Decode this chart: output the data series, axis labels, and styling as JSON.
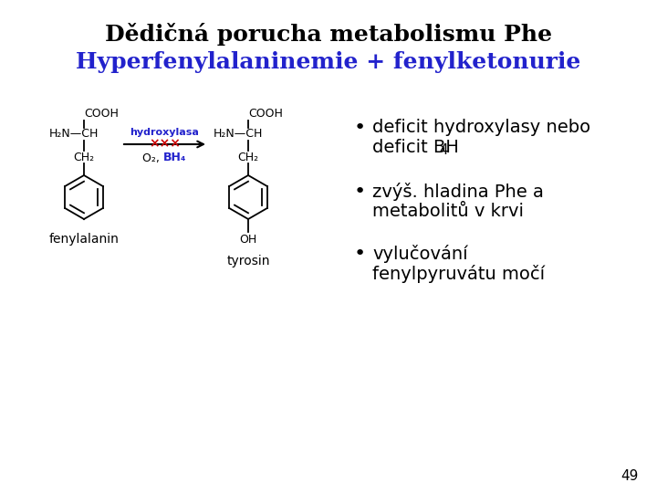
{
  "title_line1": "Dědičná porucha metabolismu Phe",
  "title_line2": "Hyperfenylalaninemie + fenylketonurie",
  "title1_color": "#000000",
  "title2_color": "#2222cc",
  "bullet1_line1": "deficit hydroxylasy nebo",
  "bullet1_line2": "deficit BH",
  "bullet1_sub": "4",
  "bullet2_line1": "zvýš. hladina Phe a",
  "bullet2_line2": "metabolitů v krvi",
  "bullet3_line1": "vylučování",
  "bullet3_line2": "fenylpyruvátu močí",
  "page_number": "49",
  "bg_color": "#ffffff",
  "text_color": "#000000",
  "arrow_label": "hydroxylasa",
  "arrow_label_color": "#2222cc",
  "arrow_x_color": "#cc0000",
  "label_left": "fenylalanin",
  "label_right": "tyrosin",
  "title1_fontsize": 18,
  "title2_fontsize": 18,
  "bullet_fontsize": 14,
  "chem_fontsize": 9
}
